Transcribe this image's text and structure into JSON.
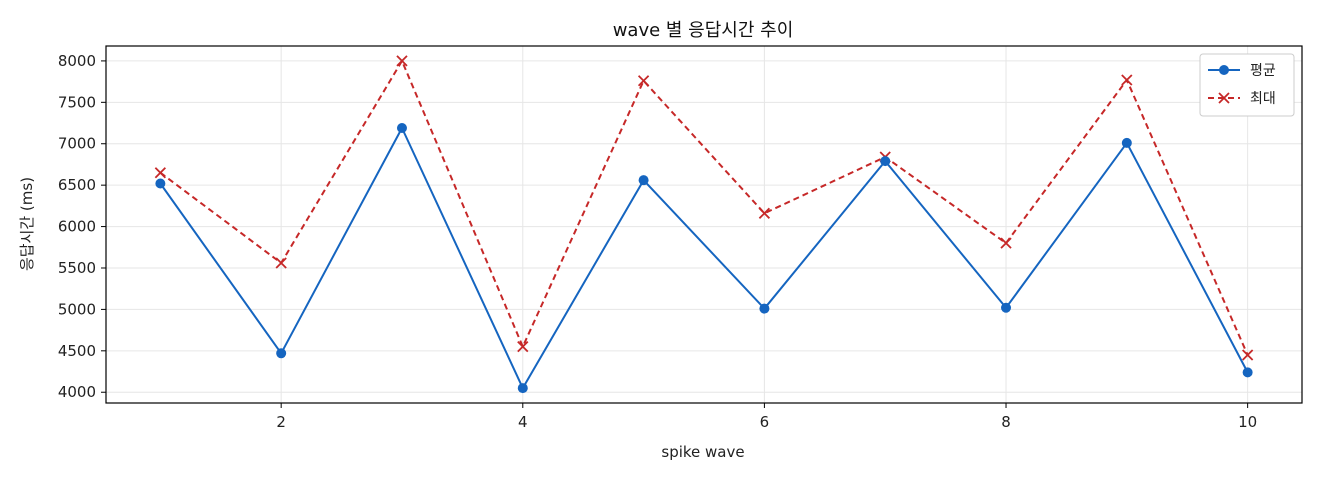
{
  "chart_data": {
    "type": "line",
    "title": "wave 별 응답시간 추이",
    "xlabel": "spike wave",
    "ylabel": "응답시간 (ms)",
    "x": [
      1,
      2,
      3,
      4,
      5,
      6,
      7,
      8,
      9,
      10
    ],
    "xlim": [
      0.55,
      10.45
    ],
    "ylim": [
      3870,
      8180
    ],
    "xticks": [
      2,
      4,
      6,
      8,
      10
    ],
    "yticks": [
      4000,
      4500,
      5000,
      5500,
      6000,
      6500,
      7000,
      7500,
      8000
    ],
    "grid": true,
    "legend_position": "top-right",
    "series": [
      {
        "name": "평균",
        "values": [
          6520,
          4470,
          7190,
          4050,
          6560,
          5010,
          6790,
          5020,
          7010,
          4240
        ],
        "color": "#1565c0",
        "style": "solid",
        "marker": "circle"
      },
      {
        "name": "최대",
        "values": [
          6650,
          5560,
          8000,
          4550,
          7760,
          6160,
          6840,
          5800,
          7770,
          4450
        ],
        "color": "#c62828",
        "style": "dashed",
        "marker": "x"
      }
    ]
  }
}
